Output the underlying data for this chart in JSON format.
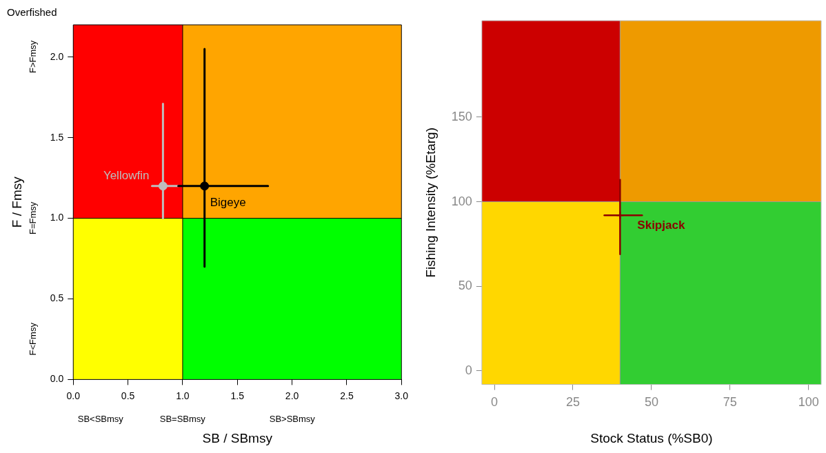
{
  "chart_data": [
    {
      "type": "scatter",
      "title": "Overfished",
      "xlabel": "SB / SBmsy",
      "ylabel": "F / Fmsy",
      "xlim": [
        0,
        3
      ],
      "xticks": [
        {
          "value": 0,
          "label": "0.0"
        },
        {
          "value": 0.5,
          "label": "0.5"
        },
        {
          "value": 1,
          "label": "1.0"
        },
        {
          "value": 1.5,
          "label": "1.5"
        },
        {
          "value": 2,
          "label": "2.0"
        },
        {
          "value": 2.5,
          "label": "2.5"
        },
        {
          "value": 3,
          "label": "3.0"
        }
      ],
      "ylim": [
        0,
        2.2
      ],
      "yticks": [
        {
          "value": 0,
          "label": "0.0"
        },
        {
          "value": 0.5,
          "label": "0.5"
        },
        {
          "value": 1,
          "label": "1.0"
        },
        {
          "value": 1.5,
          "label": "1.5"
        },
        {
          "value": 2,
          "label": "2.0"
        }
      ],
      "grid": false,
      "marker": "circle",
      "legend": false,
      "ref_lines": [
        {
          "axis": "x",
          "value": 1,
          "color": "#000000"
        },
        {
          "axis": "y",
          "value": 1,
          "color": "#000000"
        }
      ],
      "annotations": [
        "F>Fmsy",
        "F=Fmsy",
        "F<Fmsy",
        "SB<SBmsy",
        "SB=SBmsy",
        "SB>SBmsy"
      ],
      "series": [
        {
          "name": "Yellowfin",
          "color": "#bebebe",
          "x": [
            0.82
          ],
          "values": [
            1.2
          ],
          "xerrors": [
            [
              0.72,
              0.96
            ]
          ],
          "errors": [
            [
              1.0,
              1.71
            ]
          ]
        },
        {
          "name": "Bigeye",
          "color": "#000000",
          "x": [
            1.2
          ],
          "values": [
            1.2
          ],
          "xerrors": [
            [
              0.96,
              1.78
            ]
          ],
          "errors": [
            [
              0.7,
              2.05
            ]
          ]
        }
      ]
    },
    {
      "type": "scatter",
      "xlabel": "Stock Status (%SB0)",
      "ylabel": "Fishing Intensity (%Etarg)",
      "xlim": [
        -4,
        104
      ],
      "xticks": [
        0,
        25,
        50,
        75,
        100
      ],
      "ylim": [
        -8,
        207
      ],
      "yticks": [
        0,
        50,
        100,
        150
      ],
      "grid": false,
      "marker": "cross",
      "legend": false,
      "ref_lines": [
        {
          "axis": "x",
          "value": 40,
          "color": "#999999"
        },
        {
          "axis": "y",
          "value": 100,
          "color": "#999999"
        }
      ],
      "series": [
        {
          "name": "Skipjack",
          "color": "#8b0000",
          "x": [
            40
          ],
          "values": [
            92
          ],
          "xerrors": [
            [
              35,
              47
            ]
          ],
          "errors": [
            [
              69,
              113
            ]
          ]
        }
      ]
    }
  ]
}
